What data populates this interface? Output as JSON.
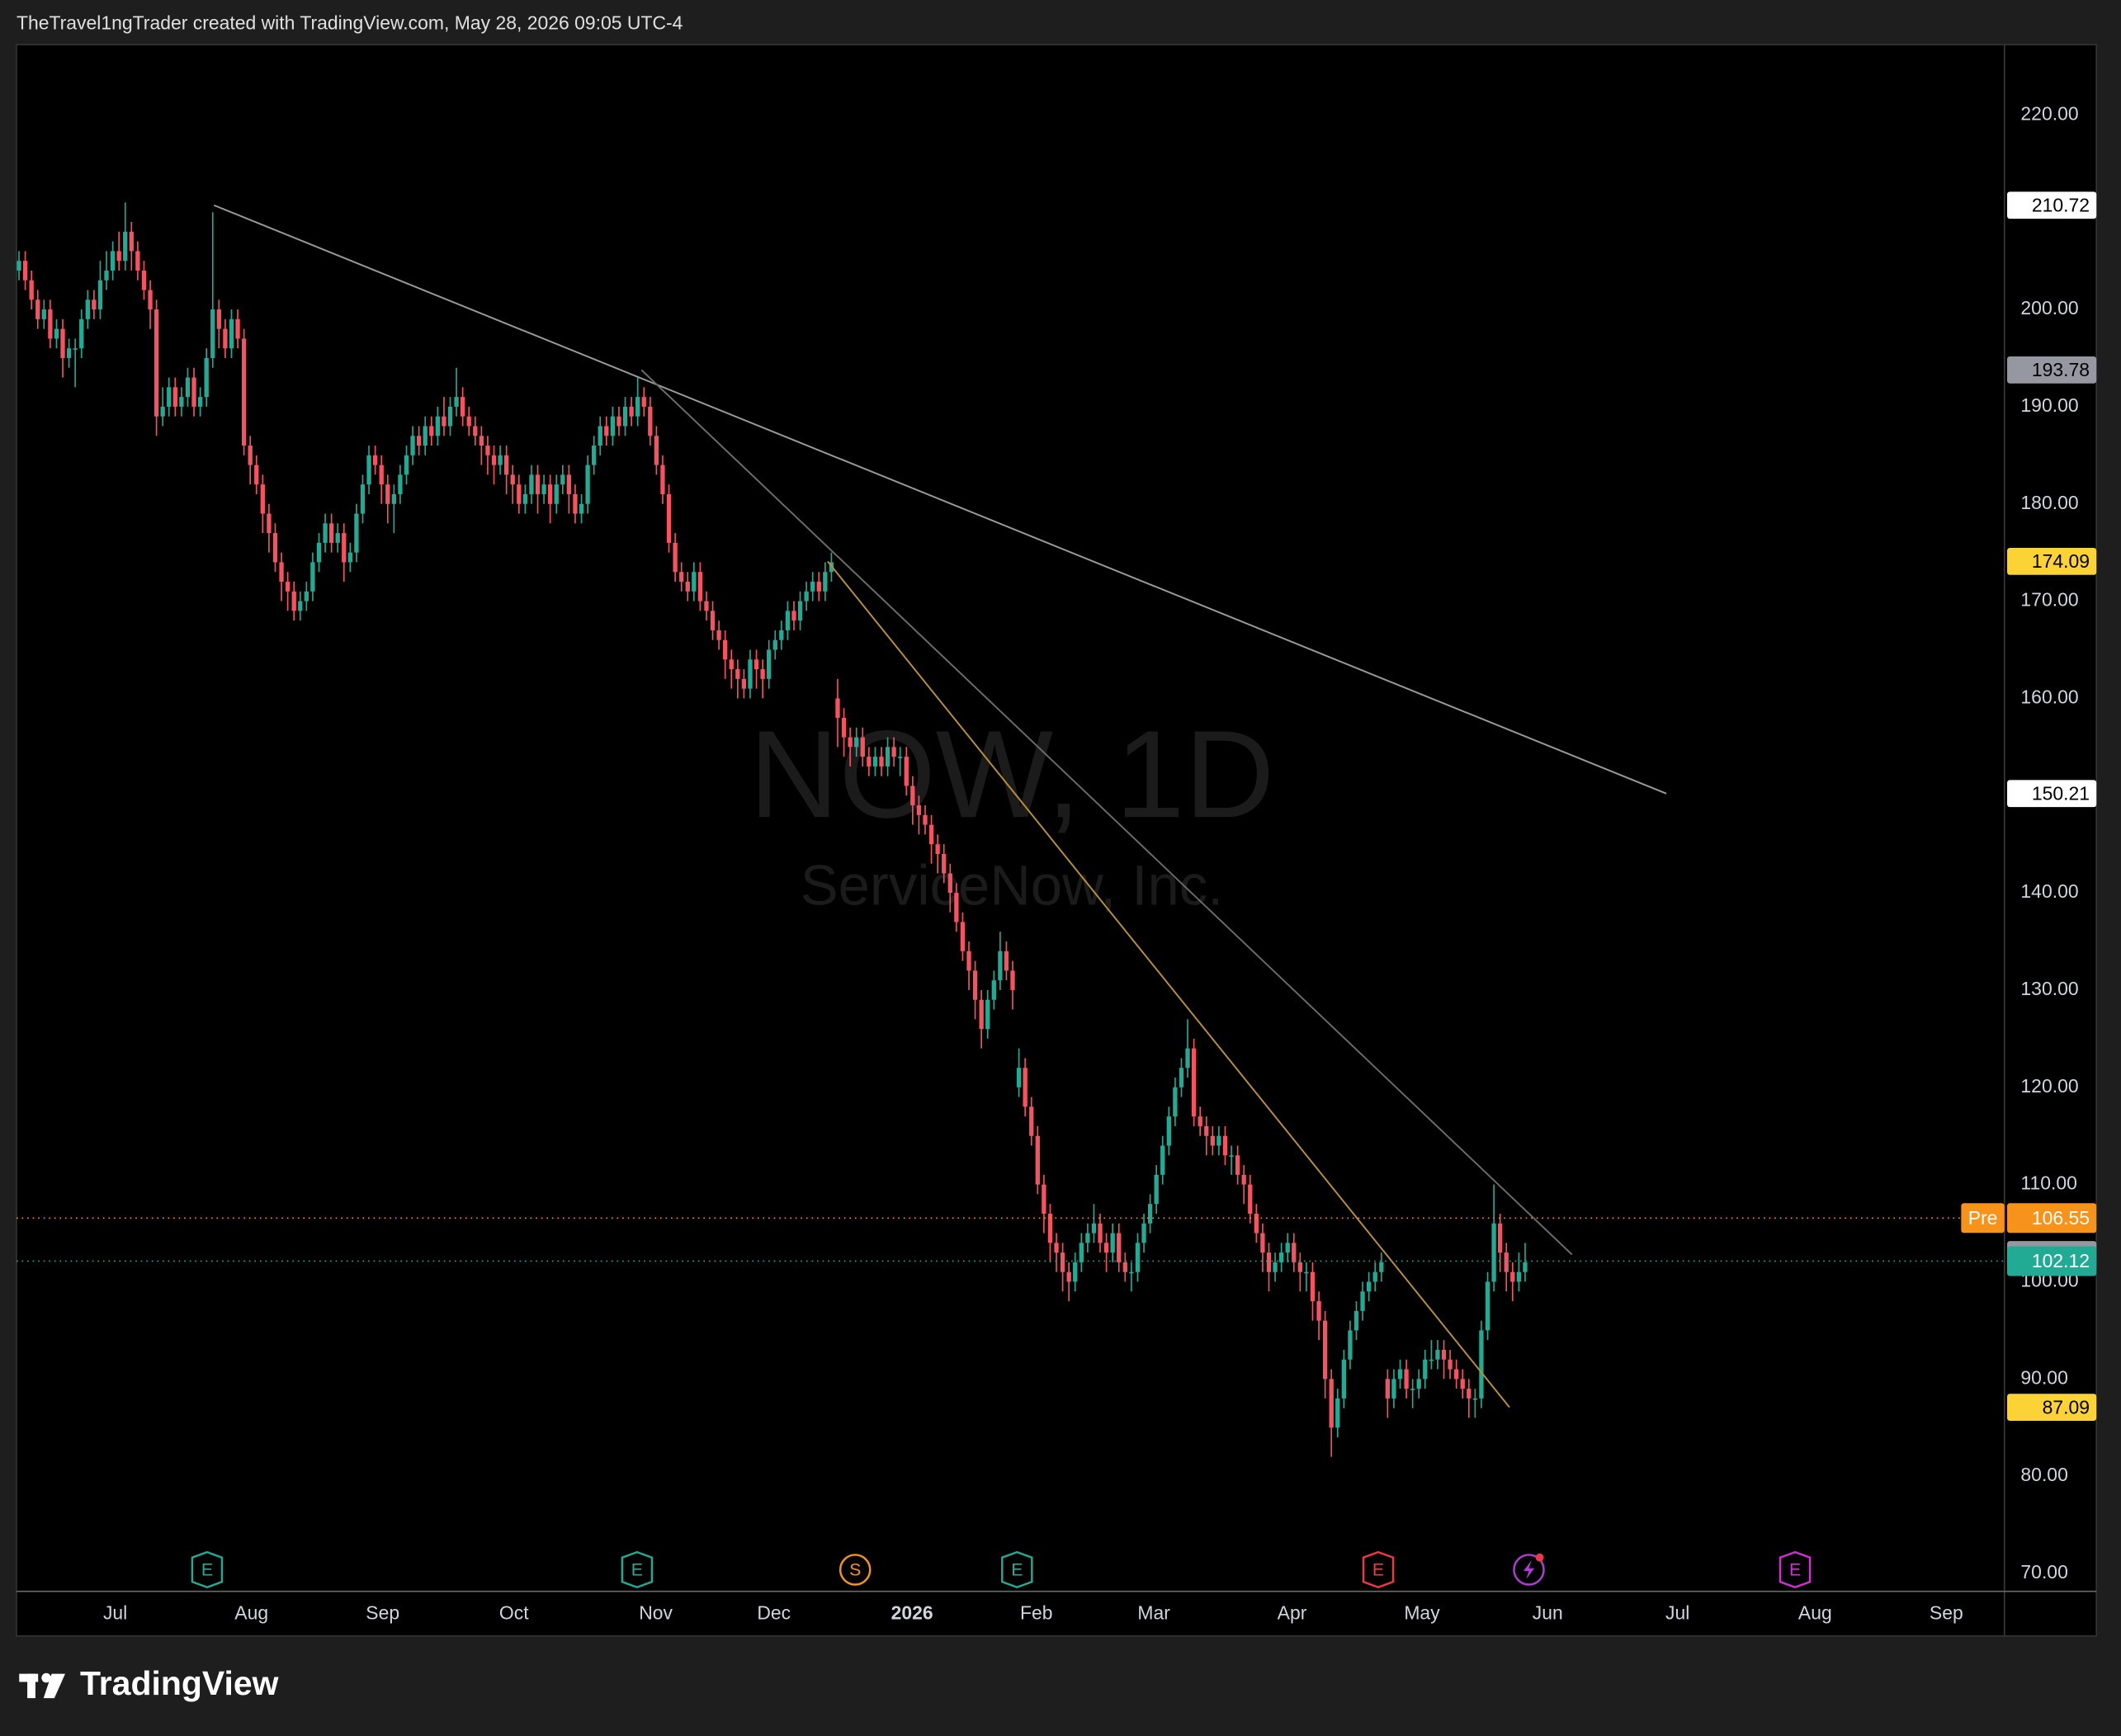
{
  "header": "TheTravel1ngTrader created with TradingView.com, May 28, 2026 09:05 UTC-4",
  "brand": "TradingView",
  "chart_data": {
    "type": "candlestick",
    "title": "NOW, 1D",
    "subtitle": "ServiceNow, Inc.",
    "up_color": "#22ab94",
    "down_color": "#f7525f",
    "grid": false,
    "xlim": [
      -0.4,
      317.7
    ],
    "xticks": [
      {
        "value": 15.4,
        "label": "Jul"
      },
      {
        "value": 37.2,
        "label": "Aug"
      },
      {
        "value": 58.2,
        "label": "Sep"
      },
      {
        "value": 79.2,
        "label": "Oct"
      },
      {
        "value": 101.9,
        "label": "Nov"
      },
      {
        "value": 120.8,
        "label": "Dec"
      },
      {
        "value": 142.9,
        "label": "2026",
        "bold": true
      },
      {
        "value": 162.8,
        "label": "Feb"
      },
      {
        "value": 181.6,
        "label": "Mar"
      },
      {
        "value": 203.7,
        "label": "Apr"
      },
      {
        "value": 224.5,
        "label": "May"
      },
      {
        "value": 244.6,
        "label": "Jun"
      },
      {
        "value": 265.4,
        "label": "Jul"
      },
      {
        "value": 287.4,
        "label": "Aug"
      },
      {
        "value": 308.4,
        "label": "Sep"
      }
    ],
    "ylim": [
      68.3,
      227.1
    ],
    "yticks": [
      {
        "value": 70,
        "label": "70.00"
      },
      {
        "value": 80,
        "label": "80.00"
      },
      {
        "value": 90,
        "label": "90.00"
      },
      {
        "value": 100,
        "label": "100.00"
      },
      {
        "value": 110,
        "label": "110.00"
      },
      {
        "value": 120,
        "label": "120.00"
      },
      {
        "value": 130,
        "label": "130.00"
      },
      {
        "value": 140,
        "label": "140.00"
      },
      {
        "value": 150,
        "label": "150.00"
      },
      {
        "value": 160,
        "label": "160.00"
      },
      {
        "value": 170,
        "label": "170.00"
      },
      {
        "value": 180,
        "label": "180.00"
      },
      {
        "value": 190,
        "label": "190.00"
      },
      {
        "value": 200,
        "label": "200.00"
      },
      {
        "value": 210,
        "label": "210.00"
      },
      {
        "value": 220,
        "label": "220.00"
      }
    ],
    "open": [
      204,
      205,
      203,
      201,
      199,
      200,
      197,
      198,
      195,
      196,
      196,
      199,
      201,
      200,
      203,
      204,
      206,
      205,
      208,
      206,
      204,
      202,
      200,
      189,
      190,
      192,
      190,
      191,
      193,
      190,
      191,
      195,
      200,
      198,
      196,
      199,
      197,
      186,
      184,
      182,
      179,
      177,
      174,
      172,
      171,
      169,
      170,
      171,
      174,
      176,
      178,
      176,
      177,
      174,
      175,
      179,
      182,
      185,
      184,
      182,
      180,
      181,
      183,
      185,
      187,
      186,
      188,
      187,
      189,
      188,
      190,
      191,
      189,
      188,
      187,
      186,
      185,
      184,
      185,
      183,
      182,
      180,
      181,
      183,
      181,
      182,
      180,
      182,
      183,
      181,
      179,
      180,
      184,
      186,
      188,
      187,
      189,
      188,
      190,
      189,
      191,
      190,
      187,
      184,
      181,
      176,
      173,
      172,
      171,
      173,
      170,
      169,
      167,
      166,
      164,
      163,
      162,
      161,
      164,
      163,
      162,
      165,
      166,
      167,
      169,
      168,
      170,
      171,
      172,
      171,
      173,
      160,
      158,
      156,
      155,
      156,
      154,
      153,
      154,
      153,
      155,
      154,
      154,
      151,
      149,
      148,
      147,
      145,
      144,
      142,
      140,
      137,
      134,
      132,
      129,
      126,
      129,
      131,
      134,
      132,
      120,
      122,
      118,
      115,
      110,
      107,
      104,
      103,
      101,
      100,
      102,
      104,
      105,
      106,
      104,
      103,
      105,
      102,
      101,
      101,
      104,
      106,
      108,
      111,
      114,
      117,
      120,
      122,
      124,
      117,
      116,
      115,
      114,
      115,
      113,
      113,
      111,
      110,
      107,
      105,
      103,
      101,
      102,
      103,
      104,
      102,
      101,
      101,
      98,
      96,
      90,
      85,
      88,
      92,
      95,
      97,
      99,
      100,
      101,
      90,
      88,
      90,
      91,
      89,
      89,
      90,
      92,
      92,
      93,
      92,
      91,
      90,
      89,
      88,
      88,
      95,
      100,
      106,
      103,
      101,
      100,
      101
    ],
    "high": [
      206,
      206,
      204,
      202,
      201,
      201,
      199,
      199,
      197,
      197,
      200,
      202,
      202,
      205,
      206,
      207,
      208,
      211,
      209,
      207,
      205,
      203,
      201,
      192,
      193,
      193,
      192,
      194,
      194,
      192,
      196,
      210,
      201,
      199,
      200,
      200,
      198,
      187,
      185,
      183,
      180,
      178,
      175,
      173,
      172,
      171,
      172,
      175,
      177,
      179,
      179,
      178,
      178,
      176,
      180,
      183,
      186,
      186,
      185,
      183,
      182,
      184,
      186,
      188,
      188,
      189,
      189,
      190,
      191,
      191,
      194,
      192,
      190,
      189,
      188,
      187,
      186,
      186,
      186,
      184,
      183,
      182,
      184,
      184,
      183,
      183,
      183,
      184,
      184,
      182,
      181,
      185,
      187,
      189,
      189,
      190,
      190,
      191,
      191,
      193,
      192,
      191,
      188,
      185,
      182,
      177,
      174,
      173,
      174,
      174,
      171,
      170,
      168,
      167,
      165,
      164,
      163,
      165,
      165,
      164,
      166,
      167,
      168,
      170,
      170,
      171,
      172,
      173,
      173,
      174,
      175,
      162,
      159,
      157,
      157,
      157,
      155,
      155,
      155,
      156,
      156,
      155,
      155,
      152,
      150,
      149,
      148,
      146,
      145,
      143,
      141,
      138,
      135,
      133,
      130,
      130,
      132,
      136,
      135,
      133,
      124,
      123,
      119,
      116,
      111,
      108,
      105,
      104,
      102,
      103,
      105,
      106,
      108,
      107,
      105,
      106,
      106,
      103,
      102,
      105,
      107,
      109,
      112,
      115,
      118,
      121,
      123,
      127,
      125,
      118,
      117,
      116,
      116,
      116,
      114,
      114,
      112,
      111,
      108,
      106,
      104,
      103,
      104,
      105,
      105,
      103,
      102,
      102,
      99,
      97,
      91,
      89,
      93,
      96,
      98,
      100,
      101,
      102,
      103,
      91,
      91,
      92,
      92,
      90,
      91,
      93,
      94,
      94,
      94,
      93,
      92,
      91,
      90,
      89,
      96,
      101,
      110,
      107,
      104,
      102,
      103,
      104
    ],
    "low": [
      203,
      202,
      200,
      198,
      198,
      196,
      196,
      193,
      194,
      192,
      195,
      198,
      199,
      199,
      202,
      203,
      204,
      204,
      204,
      203,
      201,
      198,
      187,
      188,
      189,
      189,
      189,
      190,
      189,
      189,
      190,
      194,
      196,
      195,
      195,
      196,
      185,
      182,
      181,
      177,
      175,
      173,
      170,
      169,
      168,
      168,
      169,
      170,
      173,
      175,
      175,
      175,
      172,
      173,
      174,
      178,
      181,
      183,
      180,
      178,
      177,
      180,
      182,
      184,
      185,
      185,
      186,
      186,
      187,
      187,
      189,
      188,
      187,
      186,
      184,
      183,
      182,
      183,
      181,
      180,
      179,
      179,
      180,
      179,
      180,
      178,
      179,
      181,
      179,
      178,
      178,
      179,
      183,
      185,
      186,
      186,
      187,
      187,
      188,
      188,
      189,
      186,
      183,
      180,
      175,
      172,
      171,
      170,
      170,
      169,
      168,
      166,
      165,
      162,
      161,
      160,
      160,
      160,
      161,
      160,
      161,
      164,
      165,
      166,
      167,
      167,
      169,
      170,
      170,
      170,
      172,
      155,
      154,
      153,
      154,
      153,
      152,
      152,
      152,
      152,
      153,
      152,
      150,
      147,
      146,
      146,
      143,
      142,
      141,
      138,
      136,
      133,
      130,
      127,
      124,
      125,
      128,
      130,
      131,
      128,
      119,
      117,
      114,
      109,
      105,
      102,
      101,
      99,
      98,
      99,
      101,
      103,
      104,
      103,
      101,
      102,
      101,
      100,
      99,
      100,
      103,
      105,
      107,
      110,
      113,
      116,
      119,
      121,
      116,
      115,
      113,
      113,
      113,
      112,
      111,
      110,
      108,
      106,
      104,
      101,
      99,
      100,
      101,
      102,
      101,
      99,
      99,
      96,
      94,
      88,
      82,
      84,
      87,
      91,
      94,
      96,
      98,
      99,
      100,
      86,
      87,
      89,
      88,
      87,
      88,
      89,
      91,
      91,
      90,
      90,
      89,
      88,
      86,
      86,
      87,
      94,
      99,
      101,
      99,
      98,
      99,
      100
    ],
    "close": [
      205,
      203,
      201,
      199,
      200,
      197,
      198,
      195,
      196,
      196,
      199,
      201,
      200,
      203,
      204,
      206,
      205,
      208,
      206,
      204,
      202,
      200,
      189,
      190,
      192,
      190,
      191,
      193,
      190,
      191,
      195,
      200,
      198,
      196,
      199,
      197,
      186,
      184,
      182,
      179,
      177,
      174,
      172,
      171,
      169,
      170,
      171,
      174,
      176,
      178,
      176,
      177,
      174,
      175,
      179,
      182,
      185,
      184,
      182,
      180,
      181,
      183,
      185,
      187,
      186,
      188,
      187,
      189,
      188,
      190,
      191,
      189,
      188,
      187,
      186,
      185,
      184,
      185,
      183,
      182,
      180,
      181,
      183,
      181,
      182,
      180,
      182,
      183,
      181,
      179,
      180,
      184,
      186,
      188,
      187,
      189,
      188,
      190,
      189,
      191,
      190,
      187,
      184,
      181,
      176,
      173,
      172,
      171,
      173,
      170,
      169,
      167,
      166,
      164,
      163,
      162,
      161,
      164,
      163,
      162,
      165,
      166,
      167,
      169,
      168,
      170,
      171,
      172,
      171,
      173,
      174,
      158,
      156,
      155,
      156,
      154,
      153,
      154,
      153,
      155,
      154,
      154,
      151,
      149,
      148,
      147,
      145,
      144,
      142,
      140,
      137,
      134,
      132,
      129,
      126,
      129,
      131,
      134,
      132,
      130,
      122,
      118,
      115,
      110,
      107,
      104,
      103,
      101,
      100,
      102,
      104,
      105,
      106,
      104,
      103,
      105,
      102,
      101,
      101,
      104,
      106,
      108,
      111,
      114,
      117,
      120,
      122,
      124,
      117,
      116,
      115,
      114,
      115,
      113,
      113,
      111,
      110,
      107,
      105,
      103,
      101,
      102,
      103,
      104,
      102,
      101,
      101,
      98,
      96,
      90,
      85,
      88,
      92,
      95,
      97,
      99,
      100,
      101,
      102,
      88,
      90,
      91,
      89,
      89,
      90,
      92,
      92,
      93,
      92,
      91,
      90,
      89,
      88,
      88,
      95,
      100,
      106,
      103,
      101,
      100,
      101,
      102
    ],
    "trend_lines": [
      {
        "x": [
          31.2,
          263.6
        ],
        "y": [
          210.72,
          150.21
        ],
        "color": "#9a9a9a",
        "label_color": "#ffffff"
      },
      {
        "x": [
          99.6,
          248.5
        ],
        "y": [
          193.78,
          102.8
        ],
        "color": "#6b6b6b",
        "label_color": "#9598a1"
      },
      {
        "x": [
          129.4,
          238.5
        ],
        "y": [
          174.09,
          87.09
        ],
        "color": "#b8912a",
        "label_color": "#fbd334"
      }
    ],
    "price_lines": [
      {
        "name": "Pre",
        "value": 106.55,
        "color": "#f7931a"
      },
      {
        "value": 102.12,
        "color": "#22ab94"
      }
    ],
    "events": [
      {
        "x": 30.1,
        "label": "E",
        "color": "#22ab94",
        "shape": "shield"
      },
      {
        "x": 98.9,
        "label": "E",
        "color": "#22ab94",
        "shape": "shield"
      },
      {
        "x": 133.8,
        "label": "S",
        "color": "#f7931a",
        "shape": "circle"
      },
      {
        "x": 159.7,
        "label": "E",
        "color": "#22ab94",
        "shape": "shield"
      },
      {
        "x": 217.5,
        "label": "E",
        "color": "#f23645",
        "shape": "shield"
      },
      {
        "x": 241.6,
        "color": "#b03cd6",
        "shape": "circle"
      },
      {
        "x": 284.2,
        "label": "E",
        "color": "#d42fd4",
        "shape": "shield"
      }
    ]
  }
}
